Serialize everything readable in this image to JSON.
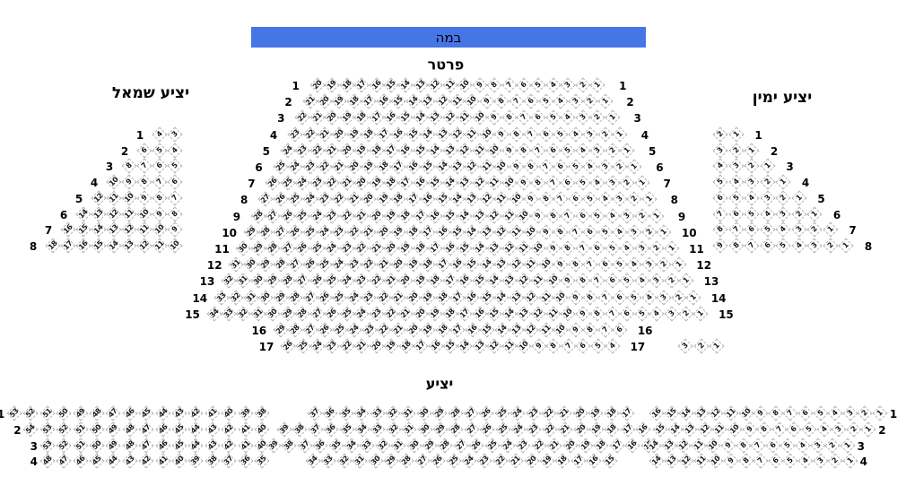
{
  "stage": {
    "label": "במה"
  },
  "colors": {
    "stage_blue": "#4675e6",
    "seat_border": "#b3b3b3",
    "seat_number": "#151515"
  },
  "parterre": {
    "title": "פרטר",
    "rows": [
      {
        "label": "1",
        "seats": [
          20,
          19,
          18,
          17,
          16,
          15,
          14,
          13,
          12,
          11,
          10,
          9,
          8,
          7,
          6,
          5,
          4,
          3,
          2,
          1
        ]
      },
      {
        "label": "2",
        "seats": [
          21,
          20,
          19,
          18,
          17,
          16,
          15,
          14,
          13,
          12,
          11,
          10,
          9,
          8,
          7,
          6,
          5,
          4,
          3,
          2,
          1
        ]
      },
      {
        "label": "3",
        "seats": [
          22,
          21,
          20,
          19,
          18,
          17,
          16,
          15,
          14,
          13,
          12,
          11,
          10,
          9,
          8,
          7,
          6,
          5,
          4,
          3,
          2,
          1
        ]
      },
      {
        "label": "4",
        "seats": [
          23,
          22,
          21,
          20,
          19,
          18,
          17,
          16,
          15,
          14,
          13,
          12,
          11,
          10,
          9,
          8,
          7,
          6,
          5,
          4,
          3,
          2,
          1
        ]
      },
      {
        "label": "5",
        "seats": [
          24,
          23,
          22,
          21,
          20,
          19,
          18,
          17,
          16,
          15,
          14,
          13,
          12,
          11,
          10,
          9,
          8,
          7,
          6,
          5,
          4,
          3,
          2,
          1
        ]
      },
      {
        "label": "6",
        "seats": [
          25,
          24,
          23,
          22,
          21,
          20,
          19,
          18,
          17,
          16,
          15,
          14,
          13,
          12,
          11,
          10,
          9,
          8,
          7,
          6,
          5,
          4,
          3,
          2,
          1
        ]
      },
      {
        "label": "7",
        "seats": [
          26,
          25,
          24,
          23,
          22,
          21,
          20,
          19,
          18,
          17,
          16,
          15,
          14,
          13,
          12,
          11,
          10,
          9,
          8,
          7,
          6,
          5,
          4,
          3,
          2,
          1
        ]
      },
      {
        "label": "8",
        "seats": [
          27,
          26,
          25,
          24,
          23,
          22,
          21,
          20,
          19,
          18,
          17,
          16,
          15,
          14,
          13,
          12,
          11,
          10,
          9,
          8,
          7,
          6,
          5,
          4,
          3,
          2,
          1
        ]
      },
      {
        "label": "9",
        "seats": [
          28,
          27,
          26,
          25,
          24,
          23,
          22,
          21,
          20,
          19,
          18,
          17,
          16,
          15,
          14,
          13,
          12,
          11,
          10,
          9,
          8,
          7,
          6,
          5,
          4,
          3,
          2,
          1
        ]
      },
      {
        "label": "10",
        "seats": [
          29,
          28,
          27,
          26,
          25,
          24,
          23,
          22,
          21,
          20,
          19,
          18,
          17,
          16,
          15,
          14,
          13,
          12,
          11,
          10,
          9,
          8,
          7,
          6,
          5,
          4,
          3,
          2,
          1
        ]
      },
      {
        "label": "11",
        "seats": [
          30,
          29,
          28,
          27,
          26,
          25,
          24,
          23,
          22,
          21,
          20,
          19,
          18,
          17,
          16,
          15,
          14,
          13,
          12,
          11,
          10,
          9,
          8,
          7,
          6,
          5,
          4,
          3,
          2,
          1
        ]
      },
      {
        "label": "12",
        "seats": [
          31,
          30,
          29,
          28,
          27,
          26,
          25,
          24,
          23,
          22,
          21,
          20,
          19,
          18,
          17,
          16,
          15,
          14,
          13,
          12,
          11,
          10,
          9,
          8,
          7,
          6,
          5,
          4,
          3,
          2,
          1
        ]
      },
      {
        "label": "13",
        "seats": [
          32,
          31,
          30,
          29,
          28,
          27,
          26,
          25,
          24,
          23,
          22,
          21,
          20,
          19,
          18,
          17,
          16,
          15,
          14,
          13,
          12,
          11,
          10,
          9,
          8,
          7,
          6,
          5,
          4,
          3,
          2,
          1
        ]
      },
      {
        "label": "14",
        "seats": [
          33,
          32,
          31,
          30,
          29,
          28,
          27,
          26,
          25,
          24,
          23,
          22,
          21,
          20,
          19,
          18,
          17,
          16,
          15,
          14,
          13,
          12,
          11,
          10,
          9,
          8,
          7,
          6,
          5,
          4,
          3,
          2,
          1
        ]
      },
      {
        "label": "15",
        "seats": [
          34,
          33,
          32,
          31,
          30,
          29,
          28,
          27,
          26,
          25,
          24,
          23,
          22,
          21,
          20,
          19,
          18,
          17,
          16,
          15,
          14,
          13,
          12,
          11,
          10,
          9,
          8,
          7,
          6,
          5,
          4,
          3,
          2,
          1
        ]
      },
      {
        "label": "16",
        "seats": [
          29,
          28,
          27,
          26,
          25,
          24,
          23,
          22,
          21,
          20,
          19,
          18,
          17,
          16,
          15,
          14,
          13,
          12,
          11,
          10,
          9,
          8,
          7,
          6
        ]
      },
      {
        "label": "17",
        "seats": [
          26,
          25,
          24,
          23,
          22,
          21,
          20,
          19,
          18,
          17,
          16,
          15,
          14,
          13,
          12,
          11,
          10,
          9,
          8,
          7,
          6,
          5,
          4
        ]
      }
    ],
    "extra_seats": [
      3,
      2,
      1
    ]
  },
  "left_balcony": {
    "title": "יציע שמאל",
    "rows": [
      {
        "label": "1",
        "seats": [
          4,
          3
        ]
      },
      {
        "label": "2",
        "seats": [
          6,
          5,
          4
        ]
      },
      {
        "label": "3",
        "seats": [
          8,
          7,
          6,
          5
        ]
      },
      {
        "label": "4",
        "seats": [
          10,
          9,
          8,
          7,
          6
        ]
      },
      {
        "label": "5",
        "seats": [
          12,
          11,
          10,
          9,
          8,
          7
        ]
      },
      {
        "label": "6",
        "seats": [
          14,
          13,
          12,
          11,
          10,
          9,
          8
        ]
      },
      {
        "label": "7",
        "seats": [
          16,
          15,
          14,
          13,
          12,
          11,
          10,
          9
        ]
      },
      {
        "label": "8",
        "seats": [
          18,
          17,
          16,
          15,
          14,
          13,
          12,
          11,
          10
        ]
      }
    ]
  },
  "right_balcony": {
    "title": "יציע ימין",
    "rows": [
      {
        "label": "1",
        "seats": [
          2,
          1
        ]
      },
      {
        "label": "2",
        "seats": [
          3,
          2,
          1
        ]
      },
      {
        "label": "3",
        "seats": [
          4,
          3,
          2,
          1
        ]
      },
      {
        "label": "4",
        "seats": [
          5,
          4,
          3,
          2,
          1
        ]
      },
      {
        "label": "5",
        "seats": [
          6,
          5,
          4,
          3,
          2,
          1
        ]
      },
      {
        "label": "6",
        "seats": [
          7,
          6,
          5,
          4,
          3,
          2,
          1
        ]
      },
      {
        "label": "7",
        "seats": [
          8,
          7,
          6,
          5,
          4,
          3,
          2,
          1
        ]
      },
      {
        "label": "8",
        "seats": [
          9,
          8,
          7,
          6,
          5,
          4,
          3,
          2,
          1
        ]
      }
    ]
  },
  "lower_balcony": {
    "title": "יציע",
    "left_block": {
      "rows": [
        {
          "label": "1",
          "seats": [
            53,
            52,
            51,
            50,
            49,
            48,
            47,
            46,
            45,
            44,
            43,
            42,
            41,
            40,
            39,
            38
          ]
        },
        {
          "label": "2",
          "seats": [
            54,
            53,
            52,
            51,
            50,
            49,
            48,
            47,
            46,
            45,
            44,
            43,
            42,
            41,
            40
          ]
        },
        {
          "label": "3",
          "seats": [
            53,
            52,
            51,
            50,
            49,
            48,
            47,
            46,
            45,
            44,
            43,
            42,
            41,
            40
          ]
        },
        {
          "label": "4",
          "seats": [
            48,
            47,
            46,
            45,
            44,
            43,
            42,
            41,
            40,
            39,
            38,
            37,
            36,
            35
          ]
        }
      ]
    },
    "center_block": {
      "rows": [
        {
          "label": "",
          "seats": [
            37,
            36,
            35,
            34,
            33,
            32,
            31,
            30,
            29,
            28,
            27,
            26,
            25,
            24,
            23,
            22,
            21,
            20,
            19,
            18,
            17
          ]
        },
        {
          "label": "",
          "seats": [
            39,
            38,
            37,
            36,
            35,
            34,
            33,
            32,
            31,
            30,
            29,
            28,
            27,
            26,
            25,
            24,
            23,
            22,
            21,
            20,
            19,
            18,
            17,
            16
          ]
        },
        {
          "label": "",
          "seats": [
            39,
            38,
            37,
            36,
            35,
            34,
            33,
            32,
            31,
            30,
            29,
            28,
            27,
            26,
            25,
            24,
            23,
            22,
            21,
            20,
            19,
            18,
            17,
            16,
            15
          ]
        },
        {
          "label": "",
          "seats": [
            34,
            33,
            32,
            31,
            30,
            29,
            28,
            27,
            26,
            25,
            24,
            23,
            22,
            21,
            20,
            19,
            18,
            17,
            16,
            15
          ]
        }
      ]
    },
    "right_block": {
      "rows": [
        {
          "label": "1",
          "seats": [
            16,
            15,
            14,
            13,
            12,
            11,
            10,
            9,
            8,
            7,
            6,
            5,
            4,
            3,
            2,
            1
          ]
        },
        {
          "label": "2",
          "seats": [
            15,
            14,
            13,
            12,
            11,
            10,
            9,
            8,
            7,
            6,
            5,
            4,
            3,
            2,
            1
          ]
        },
        {
          "label": "3",
          "seats": [
            14,
            13,
            12,
            11,
            10,
            9,
            8,
            7,
            6,
            5,
            4,
            3,
            2,
            1
          ]
        },
        {
          "label": "4",
          "seats": [
            14,
            13,
            12,
            11,
            10,
            9,
            8,
            7,
            6,
            5,
            4,
            3,
            2,
            1
          ]
        }
      ]
    }
  }
}
